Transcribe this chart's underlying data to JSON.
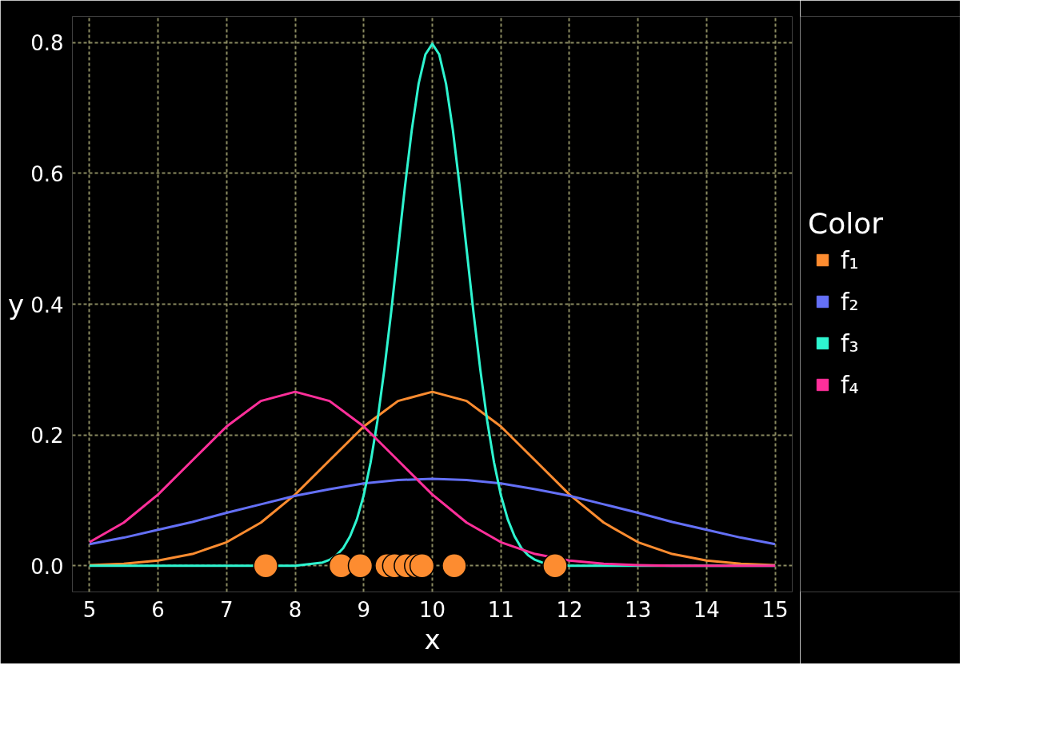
{
  "chart_data": {
    "type": "line",
    "xlabel": "x",
    "ylabel": "y",
    "legend_title": "Color",
    "legend": "right",
    "grid": true,
    "line_style": "solid",
    "marker": "none",
    "xlim": [
      4.75,
      15.25
    ],
    "ylim": [
      -0.04,
      0.84
    ],
    "xticks": [
      5,
      6,
      7,
      8,
      9,
      10,
      11,
      12,
      13,
      14,
      15
    ],
    "yticks": [
      {
        "value": 0,
        "label": "0.0"
      },
      {
        "value": 0.2,
        "label": "0.2"
      },
      {
        "value": 0.4,
        "label": "0.4"
      },
      {
        "value": 0.6,
        "label": "0.6"
      },
      {
        "value": 0.8,
        "label": "0.8"
      }
    ],
    "x": [
      5,
      5.5,
      6,
      6.5,
      7,
      7.5,
      8,
      8.5,
      9,
      9.5,
      10,
      10.5,
      11,
      11.5,
      12,
      12.5,
      13,
      13.5,
      14,
      14.5,
      15
    ],
    "series": [
      {
        "name": "f₁",
        "color": "#fd8c30",
        "values": [
          0.001,
          0.003,
          0.008,
          0.018,
          0.036,
          0.066,
          0.109,
          0.161,
          0.213,
          0.252,
          0.266,
          0.252,
          0.213,
          0.161,
          0.109,
          0.066,
          0.036,
          0.018,
          0.008,
          0.003,
          0.001
        ]
      },
      {
        "name": "f₂",
        "color": "#6470f7",
        "values": [
          0.033,
          0.043,
          0.055,
          0.067,
          0.081,
          0.094,
          0.107,
          0.117,
          0.126,
          0.131,
          0.133,
          0.131,
          0.126,
          0.117,
          0.107,
          0.094,
          0.081,
          0.067,
          0.055,
          0.043,
          0.033
        ]
      },
      {
        "name": "f₃",
        "color": "#2ef5d0",
        "x": [
          5,
          8,
          8.4,
          8.5,
          8.6,
          8.7,
          8.8,
          8.9,
          9,
          9.1,
          9.2,
          9.3,
          9.4,
          9.5,
          9.6,
          9.7,
          9.8,
          9.9,
          10,
          10.1,
          10.2,
          10.3,
          10.4,
          10.5,
          10.6,
          10.7,
          10.8,
          10.9,
          11,
          11.1,
          11.2,
          11.3,
          11.4,
          11.5,
          11.6,
          12,
          15
        ],
        "values": [
          0,
          0,
          0.005,
          0.009,
          0.016,
          0.027,
          0.045,
          0.071,
          0.108,
          0.158,
          0.222,
          0.3,
          0.388,
          0.484,
          0.579,
          0.666,
          0.737,
          0.782,
          0.798,
          0.782,
          0.737,
          0.666,
          0.579,
          0.484,
          0.388,
          0.3,
          0.222,
          0.158,
          0.108,
          0.071,
          0.045,
          0.027,
          0.016,
          0.009,
          0.005,
          0,
          0
        ]
      },
      {
        "name": "f₄",
        "color": "#ff2f9a",
        "values": [
          0.036,
          0.066,
          0.109,
          0.161,
          0.213,
          0.252,
          0.266,
          0.252,
          0.213,
          0.161,
          0.109,
          0.066,
          0.036,
          0.018,
          0.008,
          0.003,
          0.001,
          0,
          0,
          0,
          0
        ]
      },
      {
        "type": "scatter",
        "marker": "circle",
        "color": "#fd8c30",
        "x": [
          7.57,
          8.67,
          8.95,
          9.34,
          9.45,
          9.62,
          9.77,
          9.85,
          10.32,
          11.79
        ],
        "values": [
          0,
          0,
          0,
          0,
          0,
          0,
          0,
          0,
          0,
          0
        ]
      }
    ]
  }
}
